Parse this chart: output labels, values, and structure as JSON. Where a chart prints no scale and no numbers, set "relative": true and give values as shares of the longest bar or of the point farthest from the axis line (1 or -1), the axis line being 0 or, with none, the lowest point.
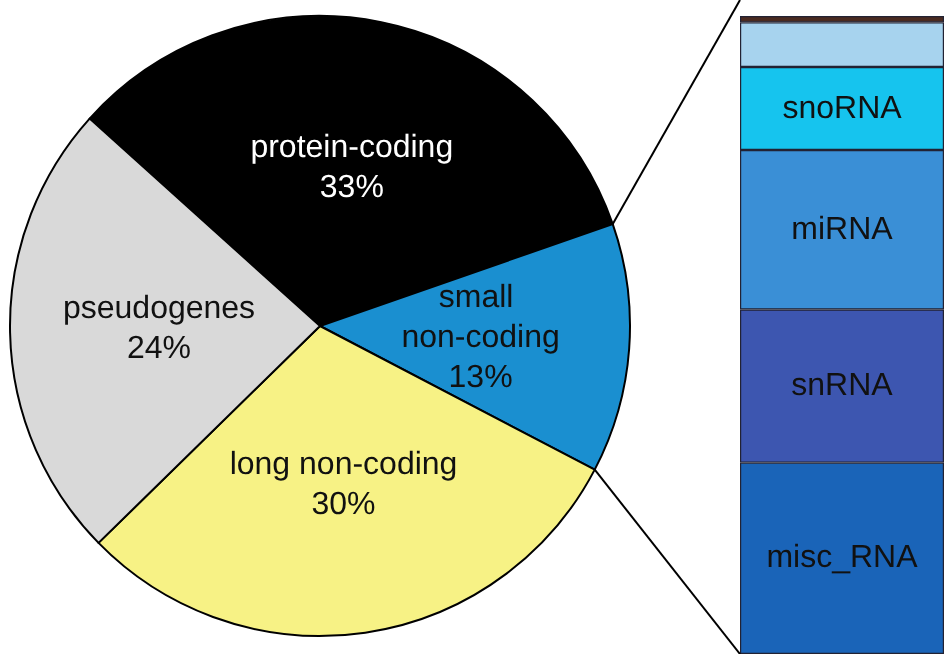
{
  "chart_data": [
    {
      "type": "pie",
      "categories": [
        "protein-coding",
        "small non-coding",
        "long non-coding",
        "pseudogenes"
      ],
      "values": [
        33,
        13,
        30,
        24
      ],
      "colors": [
        "#000000",
        "#1a8fd0",
        "#f7f285",
        "#d9d9d9"
      ],
      "value_labels": [
        "33%",
        "13%",
        "30%",
        "24%"
      ],
      "legend": false
    },
    {
      "type": "bar",
      "stacked": true,
      "relative": true,
      "categories": [
        null
      ],
      "legend": false,
      "series": [
        {
          "name": "misc_RNA",
          "color": "#1a64b8",
          "values": [
            0.3
          ]
        },
        {
          "name": "snRNA",
          "color": "#3d56b0",
          "values": [
            0.24
          ]
        },
        {
          "name": "miRNA",
          "color": "#3a8fd6",
          "values": [
            0.25
          ]
        },
        {
          "name": "snoRNA",
          "color": "#16c4ee",
          "values": [
            0.13
          ]
        },
        {
          "color": "#a7d3ee",
          "values": [
            0.07
          ]
        },
        {
          "color": "#4a2a20",
          "values": [
            0.01
          ]
        }
      ]
    }
  ]
}
